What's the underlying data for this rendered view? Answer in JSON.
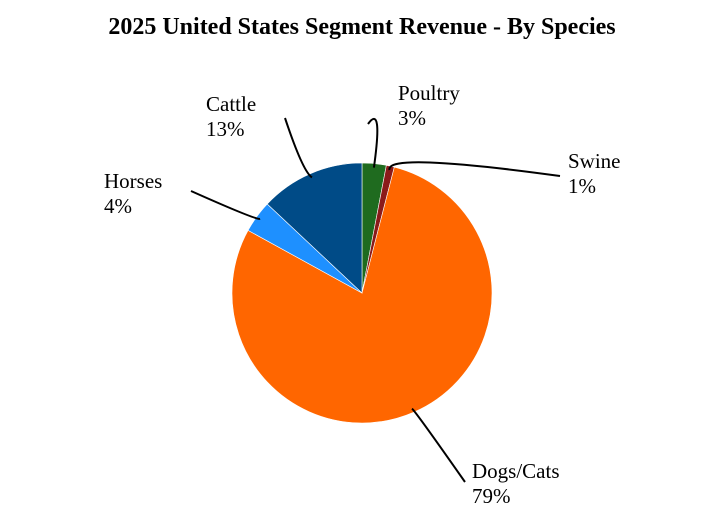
{
  "chart_data": {
    "type": "pie",
    "title": "2025 United States Segment Revenue - By Species",
    "slices": [
      {
        "name": "Poultry",
        "value": 3,
        "label": "3%",
        "color": "#1f6b1f"
      },
      {
        "name": "Swine",
        "value": 1,
        "label": "1%",
        "color": "#8b1a1a"
      },
      {
        "name": "Dogs/Cats",
        "value": 79,
        "label": "79%",
        "color": "#ff6600"
      },
      {
        "name": "Horses",
        "value": 4,
        "label": "4%",
        "color": "#1e90ff"
      },
      {
        "name": "Cattle",
        "value": 13,
        "label": "13%",
        "color": "#004b87"
      }
    ],
    "legend": "none"
  }
}
